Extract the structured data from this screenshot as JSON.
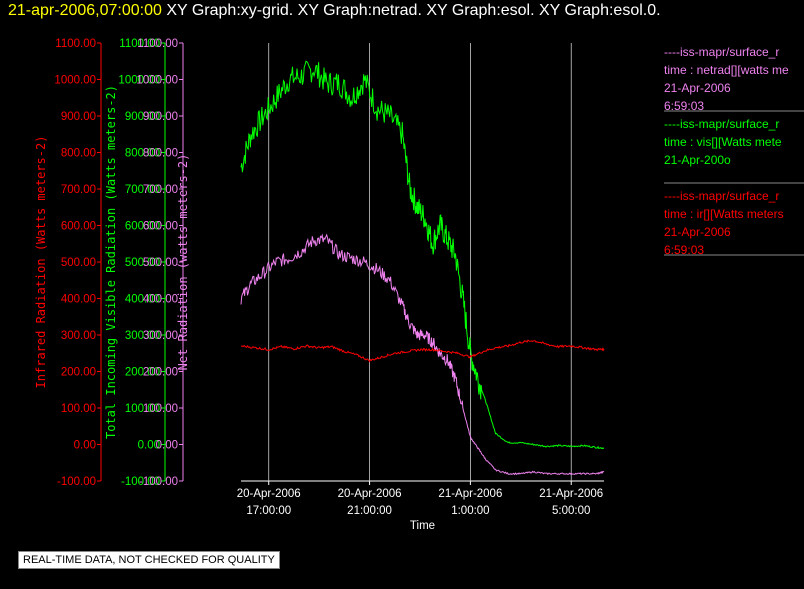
{
  "header": {
    "timestamp": "21-apr-2006,07:00:00",
    "graphs": "XY Graph:xy-grid.  XY Graph:netrad.  XY Graph:esol.  XY Graph:esol.0."
  },
  "legend": [
    {
      "line1": "----iss-mapr/surface_r",
      "line2": "time : netrad[][watts me",
      "line3": "21-Apr-2006",
      "line4": "6:59:03",
      "color": "#ee82ee"
    },
    {
      "line1": "----iss-mapr/surface_r",
      "line2": "time : vis[][Watts mete",
      "line3": "21-Apr-200o",
      "line4": "",
      "color": "#00ff00"
    },
    {
      "line1": "----iss-mapr/surface_r",
      "line2": "time : ir[][Watts meters",
      "line3": "21-Apr-2006",
      "line4": "6:59:03",
      "color": "#ff0000"
    }
  ],
  "notice": "REAL-TIME DATA, NOT CHECKED FOR QUALITY",
  "chart_data": {
    "type": "line",
    "xlabel": "Time",
    "x_ticks": [
      {
        "line1": "20-Apr-2006",
        "line2": "17:00:00",
        "hour": 17
      },
      {
        "line1": "20-Apr-2006",
        "line2": "21:00:00",
        "hour": 21
      },
      {
        "line1": "21-Apr-2006",
        "line2": "1:00:00",
        "hour": 25
      },
      {
        "line1": "21-Apr-2006",
        "line2": "5:00:00",
        "hour": 29
      }
    ],
    "xlim_hours": [
      15.9,
      30.3
    ],
    "y_axes": [
      {
        "label": "Infrared Radiation (Watts meters-2)",
        "color": "#ff0000",
        "ylim": [
          -100,
          1100
        ]
      },
      {
        "label": "Total Incoming Visible Radiation (Watts meters-2)",
        "color": "#00ff00",
        "ylim": [
          -100,
          1100
        ]
      },
      {
        "label": "Net Radiation (watts meters-2)",
        "color": "#ee82ee",
        "ylim": [
          -100,
          1100
        ]
      }
    ],
    "y_ticks": [
      "1100.00",
      "1000.00",
      "900.00",
      "800.00",
      "700.00",
      "600.00",
      "500.00",
      "400.00",
      "300.00",
      "200.00",
      "100.00",
      "0.00",
      "-100.00"
    ],
    "series": [
      {
        "name": "vis",
        "color": "#00ff00",
        "x": [
          15.9,
          16.3,
          16.8,
          17.3,
          17.8,
          18.3,
          18.8,
          19.3,
          19.8,
          20.3,
          20.8,
          21.3,
          21.8,
          22.3,
          22.6,
          22.9,
          23.2,
          23.5,
          23.8,
          24.1,
          24.4,
          24.7,
          25.0,
          25.3,
          25.6,
          26.0,
          26.5,
          27.0,
          27.5,
          28.0,
          28.5,
          29.0,
          29.5,
          30.0,
          30.3
        ],
        "y": [
          760,
          850,
          900,
          950,
          1000,
          1010,
          1030,
          990,
          990,
          950,
          1000,
          920,
          900,
          850,
          700,
          650,
          620,
          550,
          600,
          560,
          520,
          400,
          250,
          180,
          120,
          30,
          5,
          5,
          0,
          -5,
          -3,
          -5,
          -3,
          -8,
          -10
        ]
      },
      {
        "name": "netrad",
        "color": "#ee82ee",
        "x": [
          15.9,
          16.3,
          16.8,
          17.3,
          17.8,
          18.3,
          18.8,
          19.3,
          19.8,
          20.3,
          20.8,
          21.3,
          21.8,
          22.3,
          22.6,
          22.9,
          23.2,
          23.5,
          23.8,
          24.1,
          24.4,
          24.7,
          25.0,
          25.3,
          25.6,
          26.0,
          26.5,
          27.0,
          27.5,
          28.0,
          28.5,
          29.0,
          29.5,
          30.0,
          30.3
        ],
        "y": [
          400,
          440,
          470,
          500,
          510,
          530,
          560,
          560,
          520,
          510,
          500,
          480,
          450,
          380,
          330,
          300,
          300,
          280,
          250,
          230,
          180,
          100,
          20,
          -10,
          -40,
          -70,
          -80,
          -80,
          -75,
          -80,
          -80,
          -80,
          -80,
          -80,
          -75
        ]
      },
      {
        "name": "ir",
        "color": "#ff0000",
        "x": [
          15.9,
          16.5,
          17.0,
          17.5,
          18.0,
          18.5,
          19.0,
          19.5,
          20.0,
          20.5,
          21.0,
          21.5,
          22.0,
          22.5,
          23.0,
          23.5,
          24.0,
          24.5,
          25.0,
          25.5,
          26.0,
          26.5,
          27.0,
          27.5,
          28.0,
          28.5,
          29.0,
          29.5,
          30.0,
          30.3
        ],
        "y": [
          270,
          265,
          260,
          268,
          262,
          270,
          265,
          268,
          255,
          245,
          230,
          240,
          250,
          255,
          260,
          260,
          255,
          250,
          240,
          255,
          265,
          270,
          280,
          285,
          275,
          268,
          270,
          265,
          260,
          262
        ]
      }
    ]
  }
}
